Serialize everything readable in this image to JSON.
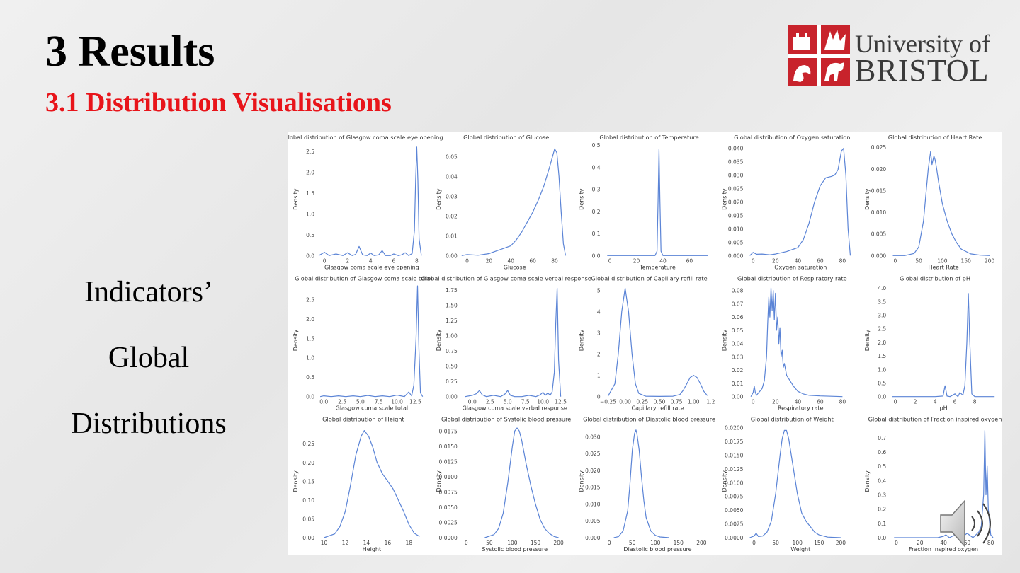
{
  "slide": {
    "title": "3 Results",
    "subtitle": "3.1 Distribution Visualisations",
    "side_lines": [
      "Indicators’",
      "Global",
      "Distributions"
    ]
  },
  "logo": {
    "line1": "University of",
    "line2": "BRISTOL",
    "brand_color": "#c8232c"
  },
  "colors": {
    "line": "#5b84d6",
    "subtitle": "#e8141a"
  },
  "chart_data": [
    {
      "type": "line",
      "title": "Global distribution of Glasgow coma scale eye opening",
      "xlabel": "Glasgow coma scale eye opening",
      "ylabel": "Density",
      "xlim": [
        -0.5,
        8.7
      ],
      "ylim": [
        0,
        2.7
      ],
      "xticks": [
        0,
        2,
        4,
        6,
        8
      ],
      "yticks": [
        0.0,
        0.5,
        1.0,
        1.5,
        2.0,
        2.5
      ],
      "x": [
        -0.5,
        0,
        0.4,
        1,
        1.6,
        2,
        2.4,
        2.7,
        3,
        3.3,
        3.7,
        4,
        4.3,
        4.7,
        5,
        5.3,
        5.7,
        6,
        6.4,
        6.7,
        7,
        7.3,
        7.6,
        7.8,
        7.9,
        8.0,
        8.1,
        8.2,
        8.4
      ],
      "y": [
        0.0,
        0.08,
        0.0,
        0.04,
        0.0,
        0.07,
        0.0,
        0.03,
        0.22,
        0.02,
        0.0,
        0.06,
        0.0,
        0.02,
        0.12,
        0.0,
        0.0,
        0.04,
        0.0,
        0.02,
        0.07,
        0.0,
        0.05,
        0.6,
        1.8,
        2.6,
        1.8,
        0.4,
        0.0
      ]
    },
    {
      "type": "line",
      "title": "Global distribution of Glucose",
      "xlabel": "Glucose",
      "ylabel": "Density",
      "xlim": [
        -5,
        92
      ],
      "ylim": [
        0,
        0.057
      ],
      "xticks": [
        0,
        20,
        40,
        60,
        80
      ],
      "yticks": [
        0.0,
        0.01,
        0.02,
        0.03,
        0.04,
        0.05
      ],
      "x": [
        -5,
        0,
        10,
        20,
        25,
        30,
        40,
        45,
        50,
        55,
        60,
        65,
        70,
        75,
        78,
        80,
        82,
        84,
        86,
        88,
        90
      ],
      "y": [
        0.0,
        0.0005,
        0.0002,
        0.001,
        0.002,
        0.003,
        0.005,
        0.008,
        0.012,
        0.017,
        0.022,
        0.028,
        0.035,
        0.044,
        0.05,
        0.054,
        0.052,
        0.04,
        0.022,
        0.006,
        0.0
      ]
    },
    {
      "type": "line",
      "title": "Global distribution of Temperature",
      "xlabel": "Temperature",
      "ylabel": "Density",
      "xlim": [
        -4,
        76
      ],
      "ylim": [
        0,
        0.51
      ],
      "xticks": [
        0,
        20,
        40,
        60
      ],
      "yticks": [
        0.0,
        0.1,
        0.2,
        0.3,
        0.4,
        0.5
      ],
      "x": [
        -2,
        20,
        34,
        35.5,
        36.3,
        37,
        37.7,
        38.5,
        40,
        60,
        74
      ],
      "y": [
        0,
        0,
        0,
        0.02,
        0.25,
        0.48,
        0.25,
        0.02,
        0,
        0,
        0
      ]
    },
    {
      "type": "line",
      "title": "Global distribution of Oxygen saturation",
      "xlabel": "Oxygen saturation",
      "ylabel": "Density",
      "xlim": [
        -5,
        90
      ],
      "ylim": [
        0,
        0.042
      ],
      "xticks": [
        0,
        20,
        40,
        60,
        80
      ],
      "yticks": [
        0.0,
        0.005,
        0.01,
        0.015,
        0.02,
        0.025,
        0.03,
        0.035,
        0.04
      ],
      "x": [
        -3,
        0,
        3,
        8,
        15,
        20,
        30,
        40,
        45,
        50,
        55,
        60,
        65,
        70,
        73,
        76,
        79,
        81,
        83,
        85,
        87
      ],
      "y": [
        0.0,
        0.0012,
        0.0005,
        0.0006,
        0.0003,
        0.0006,
        0.0015,
        0.003,
        0.006,
        0.012,
        0.02,
        0.026,
        0.029,
        0.0295,
        0.03,
        0.032,
        0.039,
        0.04,
        0.03,
        0.01,
        0.0
      ]
    },
    {
      "type": "line",
      "title": "Global distribution of Heart Rate",
      "xlabel": "Heart Rate",
      "ylabel": "Density",
      "xlim": [
        -10,
        215
      ],
      "ylim": [
        0,
        0.026
      ],
      "xticks": [
        0,
        50,
        100,
        150,
        200
      ],
      "yticks": [
        0.0,
        0.005,
        0.01,
        0.015,
        0.02,
        0.025
      ],
      "x": [
        -5,
        20,
        40,
        50,
        60,
        65,
        70,
        75,
        78,
        82,
        85,
        88,
        92,
        100,
        110,
        120,
        130,
        140,
        160,
        180,
        200
      ],
      "y": [
        0,
        0,
        0.0005,
        0.002,
        0.008,
        0.014,
        0.02,
        0.024,
        0.021,
        0.023,
        0.022,
        0.02,
        0.017,
        0.012,
        0.008,
        0.005,
        0.003,
        0.0015,
        0.0004,
        0.0001,
        0
      ]
    },
    {
      "type": "line",
      "title": "Global distribution of Glasgow coma scale total",
      "xlabel": "Glasgow coma scale total",
      "ylabel": "Density",
      "xlim": [
        -0.7,
        13.8
      ],
      "ylim": [
        0,
        2.9
      ],
      "xticks": [
        0.0,
        2.5,
        5.0,
        7.5,
        10.0,
        12.5
      ],
      "yticks": [
        0.0,
        0.5,
        1.0,
        1.5,
        2.0,
        2.5
      ],
      "x": [
        -0.5,
        0,
        1,
        2,
        3,
        4,
        5,
        6,
        7,
        8,
        9,
        10,
        11,
        11.6,
        12,
        12.3,
        12.6,
        12.8,
        13,
        13.2,
        13.5
      ],
      "y": [
        0,
        0.02,
        0,
        0.02,
        0,
        0.02,
        0,
        0.03,
        0,
        0.02,
        0,
        0.04,
        0,
        0.12,
        0.02,
        0.3,
        1.5,
        2.85,
        1.2,
        0.1,
        0
      ]
    },
    {
      "type": "line",
      "title": "Global distribution of Glasgow coma scale verbal response",
      "xlabel": "Glasgow coma scale verbal response",
      "ylabel": "Density",
      "xlim": [
        -1.5,
        13.5
      ],
      "ylim": [
        0,
        1.85
      ],
      "xticks": [
        0.0,
        2.5,
        5.0,
        7.5,
        10.0,
        12.5
      ],
      "yticks": [
        0.0,
        0.25,
        0.5,
        0.75,
        1.0,
        1.25,
        1.5,
        1.75
      ],
      "x": [
        -1,
        0,
        0.6,
        1,
        1.4,
        2,
        3,
        4,
        4.6,
        5,
        5.4,
        6,
        7,
        8,
        9,
        9.6,
        10,
        10.3,
        10.7,
        11,
        11.3,
        11.6,
        11.8,
        12,
        12.2,
        12.5
      ],
      "y": [
        0,
        0.02,
        0.05,
        0.1,
        0.03,
        0.0,
        0.02,
        0.0,
        0.04,
        0.1,
        0.02,
        0.0,
        0.0,
        0.02,
        0.0,
        0.03,
        0.07,
        0.02,
        0.06,
        0.02,
        0.08,
        0.4,
        1.2,
        1.78,
        0.6,
        0
      ]
    },
    {
      "type": "line",
      "title": "Global distribution of Capillary refill rate",
      "xlabel": "Capillary refill rate",
      "ylabel": "Density",
      "xlim": [
        -0.3,
        1.25
      ],
      "ylim": [
        0,
        5.3
      ],
      "xticks": [
        -0.25,
        0.0,
        0.25,
        0.5,
        0.75,
        1.0,
        1.25
      ],
      "xtick_labels": [
        "−0.25",
        "0.00",
        "0.25",
        "0.50",
        "0.75",
        "1.00",
        "1.2"
      ],
      "yticks": [
        0,
        1,
        2,
        3,
        4,
        5
      ],
      "x": [
        -0.25,
        -0.15,
        -0.1,
        -0.05,
        0,
        0.05,
        0.1,
        0.15,
        0.2,
        0.3,
        0.5,
        0.7,
        0.8,
        0.85,
        0.9,
        0.95,
        1.0,
        1.05,
        1.1,
        1.15,
        1.2
      ],
      "y": [
        0.02,
        0.6,
        2.0,
        4.0,
        5.1,
        4.0,
        2.0,
        0.6,
        0.15,
        0.02,
        0.01,
        0.02,
        0.1,
        0.3,
        0.6,
        0.9,
        1.0,
        0.9,
        0.6,
        0.25,
        0.05
      ]
    },
    {
      "type": "line",
      "title": "Global distribution of Respiratory rate",
      "xlabel": "Respiratory rate",
      "ylabel": "Density",
      "xlim": [
        -5,
        90
      ],
      "ylim": [
        0,
        0.085
      ],
      "xticks": [
        0,
        20,
        40,
        60,
        80
      ],
      "yticks": [
        0.0,
        0.01,
        0.02,
        0.03,
        0.04,
        0.05,
        0.06,
        0.07,
        0.08
      ],
      "x": [
        -2,
        0,
        1,
        2,
        3,
        5,
        8,
        10,
        12,
        13,
        14,
        15,
        16,
        17,
        18,
        19,
        20,
        21,
        22,
        23,
        24,
        25,
        26,
        27,
        28,
        30,
        33,
        36,
        40,
        45,
        50,
        60,
        80
      ],
      "y": [
        0,
        0.003,
        0.008,
        0.003,
        0.001,
        0.003,
        0.006,
        0.012,
        0.03,
        0.055,
        0.075,
        0.06,
        0.082,
        0.065,
        0.08,
        0.058,
        0.078,
        0.05,
        0.06,
        0.04,
        0.052,
        0.03,
        0.035,
        0.022,
        0.025,
        0.016,
        0.012,
        0.008,
        0.004,
        0.002,
        0.001,
        0.0005,
        0
      ]
    },
    {
      "type": "line",
      "title": "Global distribution of pH",
      "xlabel": "pH",
      "ylabel": "Density",
      "xlim": [
        -0.5,
        10.2
      ],
      "ylim": [
        0,
        4.15
      ],
      "xticks": [
        0,
        2,
        4,
        6,
        8
      ],
      "yticks": [
        0.0,
        0.5,
        1.0,
        1.5,
        2.0,
        2.5,
        3.0,
        3.5,
        4.0
      ],
      "x": [
        -0.3,
        2,
        4,
        4.8,
        5.0,
        5.2,
        5.5,
        6.0,
        6.3,
        6.5,
        6.8,
        7.0,
        7.2,
        7.35,
        7.5,
        7.7,
        8,
        10
      ],
      "y": [
        0,
        0,
        0,
        0.02,
        0.4,
        0.02,
        0,
        0.1,
        0,
        0.15,
        0.05,
        0.4,
        2.0,
        3.8,
        2.0,
        0.1,
        0,
        0
      ]
    },
    {
      "type": "line",
      "title": "Global distribution of Height",
      "xlabel": "Height",
      "ylabel": "Density",
      "xlim": [
        9.5,
        19.5
      ],
      "ylim": [
        0,
        0.3
      ],
      "xticks": [
        10,
        12,
        14,
        16,
        18
      ],
      "yticks": [
        0.0,
        0.05,
        0.1,
        0.15,
        0.2,
        0.25
      ],
      "x": [
        10,
        11,
        11.5,
        12,
        12.5,
        13,
        13.5,
        13.8,
        14.2,
        14.6,
        15,
        15.5,
        16,
        16.5,
        17,
        17.5,
        18,
        18.5,
        19
      ],
      "y": [
        0.0,
        0.01,
        0.03,
        0.07,
        0.14,
        0.22,
        0.27,
        0.285,
        0.27,
        0.24,
        0.2,
        0.17,
        0.15,
        0.13,
        0.1,
        0.07,
        0.035,
        0.012,
        0.003
      ]
    },
    {
      "type": "line",
      "title": "Global distribution of Systolic blood pressure",
      "xlabel": "Systolic blood pressure",
      "ylabel": "Density",
      "xlim": [
        -10,
        220
      ],
      "ylim": [
        0,
        0.0185
      ],
      "xticks": [
        0,
        50,
        100,
        150,
        200
      ],
      "yticks": [
        0.0,
        0.0025,
        0.005,
        0.0075,
        0.01,
        0.0125,
        0.015,
        0.0175
      ],
      "x": [
        40,
        60,
        70,
        80,
        90,
        100,
        105,
        110,
        115,
        120,
        130,
        140,
        150,
        160,
        170,
        180,
        190,
        200
      ],
      "y": [
        0,
        0.0005,
        0.0015,
        0.004,
        0.009,
        0.015,
        0.0175,
        0.018,
        0.0175,
        0.016,
        0.012,
        0.0085,
        0.0055,
        0.003,
        0.0015,
        0.0007,
        0.0002,
        0
      ]
    },
    {
      "type": "line",
      "title": "Global distribution of Diastolic blood pressure",
      "xlabel": "Diastolic blood pressure",
      "ylabel": "Density",
      "xlim": [
        -10,
        220
      ],
      "ylim": [
        0,
        0.0335
      ],
      "xticks": [
        0,
        50,
        100,
        150,
        200
      ],
      "yticks": [
        0.0,
        0.005,
        0.01,
        0.015,
        0.02,
        0.025,
        0.03
      ],
      "x": [
        10,
        20,
        30,
        40,
        45,
        50,
        55,
        58,
        60,
        65,
        70,
        75,
        80,
        90,
        100,
        110,
        120,
        130
      ],
      "y": [
        0,
        0.0003,
        0.002,
        0.008,
        0.016,
        0.026,
        0.031,
        0.032,
        0.031,
        0.026,
        0.018,
        0.011,
        0.006,
        0.002,
        0.0007,
        0.0002,
        0.0001,
        0
      ]
    },
    {
      "type": "line",
      "title": "Global distribution of Weight",
      "xlabel": "Weight",
      "ylabel": "Density",
      "xlim": [
        -15,
        230
      ],
      "ylim": [
        0,
        0.0205
      ],
      "xticks": [
        0,
        50,
        100,
        150,
        200
      ],
      "yticks": [
        0.0,
        0.0025,
        0.005,
        0.0075,
        0.01,
        0.0125,
        0.015,
        0.0175,
        0.02
      ],
      "x": [
        -10,
        0,
        5,
        10,
        20,
        30,
        40,
        50,
        60,
        65,
        70,
        75,
        80,
        90,
        100,
        110,
        120,
        130,
        140,
        150,
        170,
        200
      ],
      "y": [
        0,
        0.0003,
        0.0008,
        0.0002,
        0.0003,
        0.001,
        0.003,
        0.008,
        0.015,
        0.018,
        0.0195,
        0.0195,
        0.018,
        0.013,
        0.008,
        0.0045,
        0.003,
        0.002,
        0.001,
        0.0005,
        0.0001,
        0
      ]
    },
    {
      "type": "line",
      "title": "Global distribution of Fraction inspired oxygen",
      "xlabel": "Fraction inspired oxygen",
      "ylabel": "Density",
      "xlim": [
        -5,
        85
      ],
      "ylim": [
        0,
        0.79
      ],
      "xticks": [
        0,
        20,
        40,
        60,
        80
      ],
      "yticks": [
        0.0,
        0.1,
        0.2,
        0.3,
        0.4,
        0.5,
        0.6,
        0.7
      ],
      "x": [
        -2,
        0,
        20,
        35,
        40,
        42,
        45,
        50,
        55,
        60,
        65,
        70,
        72,
        74,
        75,
        76,
        77,
        78,
        80,
        82
      ],
      "y": [
        0,
        0,
        0,
        0,
        0.01,
        0.02,
        0.0,
        0.02,
        0.0,
        0.03,
        0.0,
        0.04,
        0.08,
        0.3,
        0.75,
        0.3,
        0.5,
        0.2,
        0.02,
        0
      ]
    }
  ]
}
